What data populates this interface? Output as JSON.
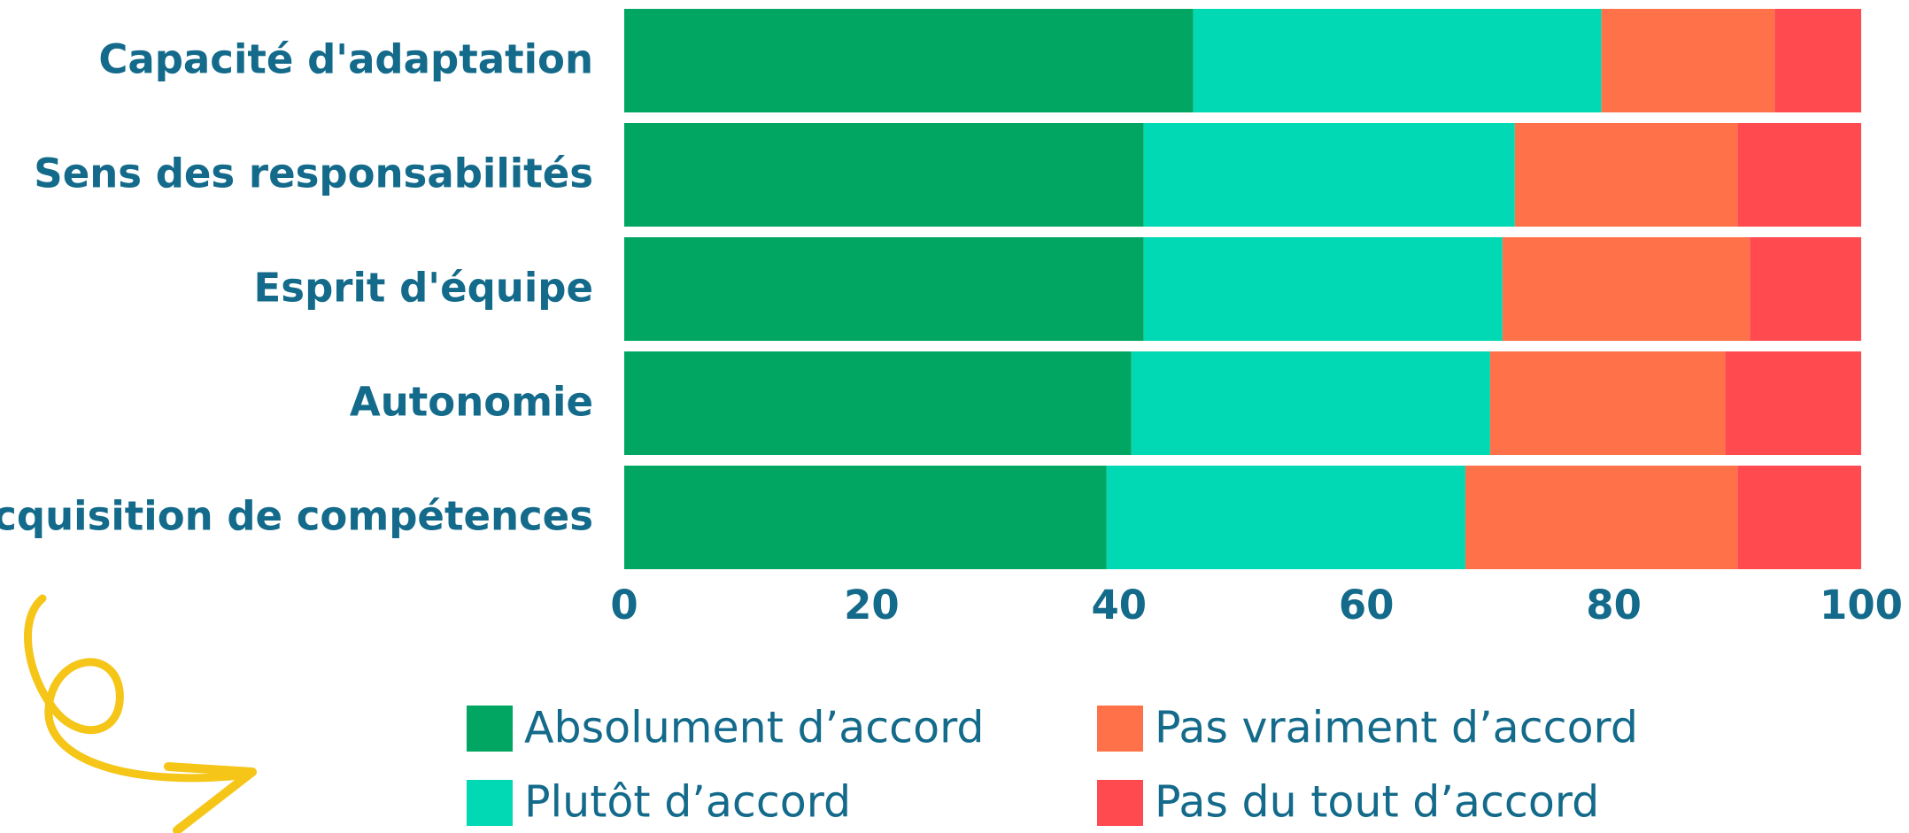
{
  "chart_data": {
    "type": "stacked-bar-horizontal",
    "categories": [
      "Capacité d'adaptation",
      "Sens des responsabilités",
      "Esprit d'équipe",
      "Autonomie",
      "Acquisition de compétences"
    ],
    "series": [
      {
        "name": "Absolument d’accord",
        "color": "#00a661",
        "values": [
          46,
          42,
          42,
          41,
          39
        ]
      },
      {
        "name": "Plutôt d’accord",
        "color": "#00d9b3",
        "values": [
          33,
          30,
          29,
          29,
          29
        ]
      },
      {
        "name": "Pas vraiment d’accord",
        "color": "#ff7148",
        "values": [
          14,
          18,
          20,
          19,
          22
        ]
      },
      {
        "name": "Pas du tout d’accord",
        "color": "#ff4a4f",
        "values": [
          7,
          10,
          9,
          11,
          10
        ]
      }
    ],
    "xlim": [
      0,
      100
    ],
    "xticks": [
      0,
      20,
      40,
      60,
      80,
      100
    ],
    "legend": "bottom"
  }
}
